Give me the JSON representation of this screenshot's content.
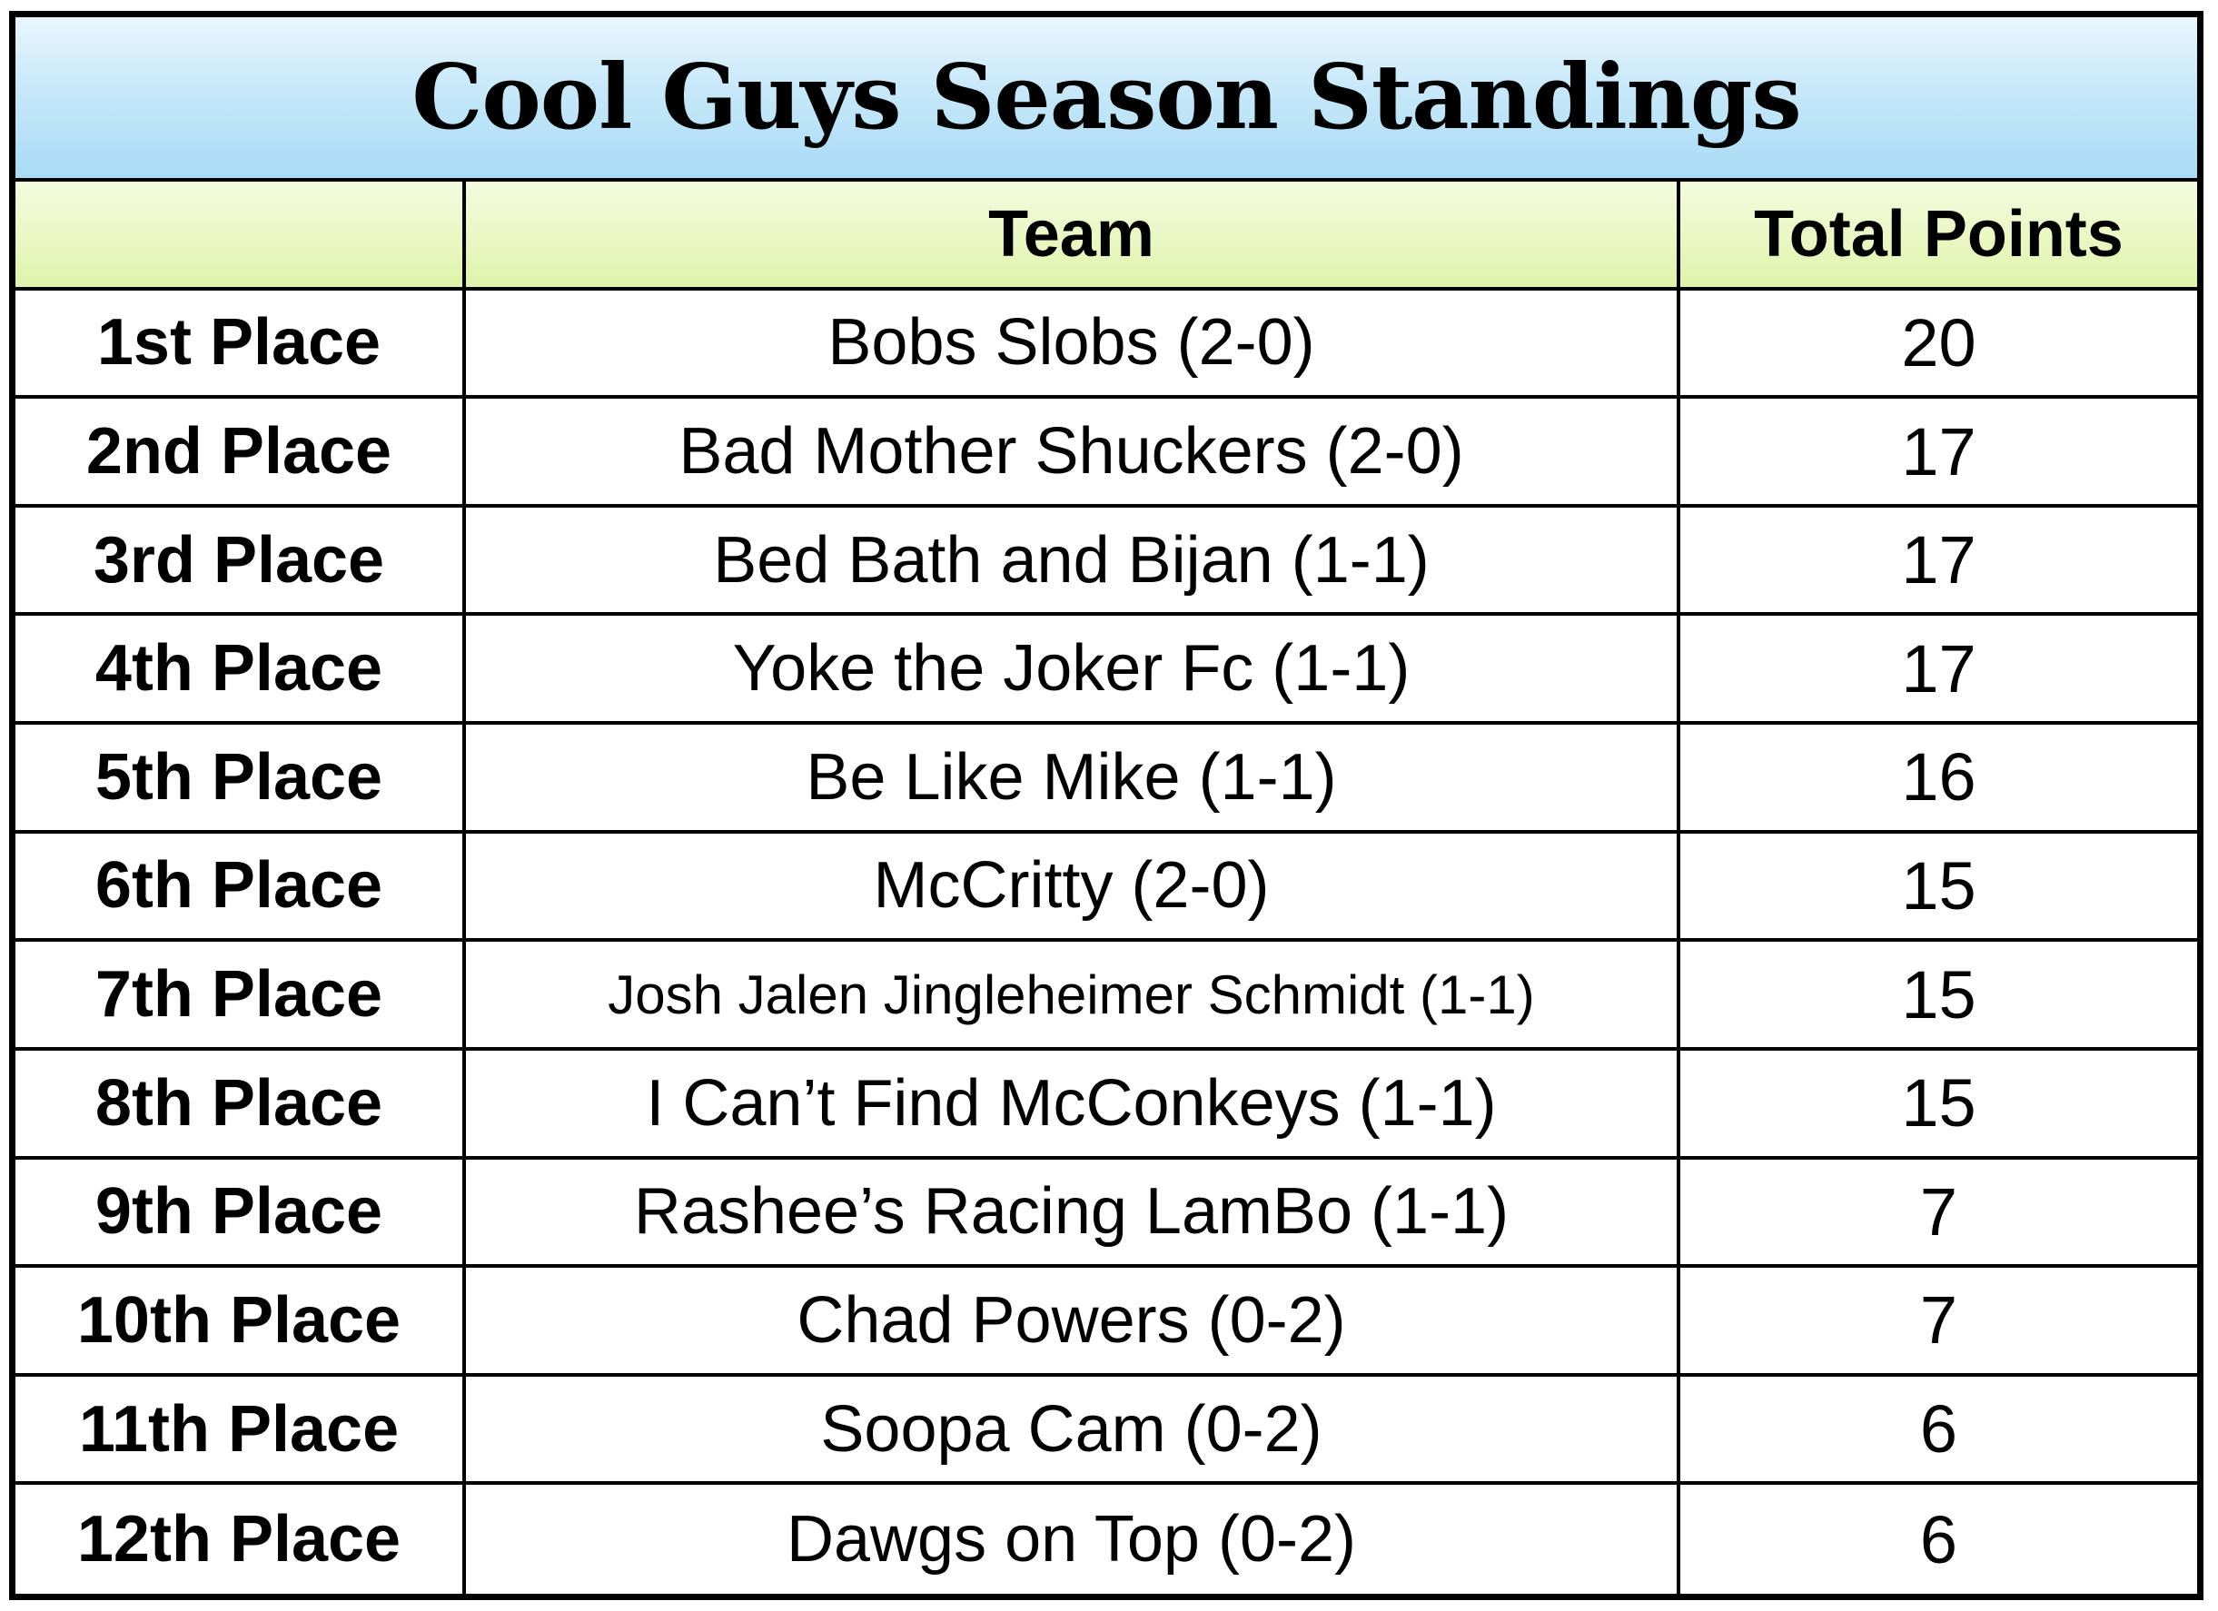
{
  "title": "Cool Guys Season Standings",
  "headers": {
    "place": "",
    "team": "Team",
    "points": "Total Points"
  },
  "rows": [
    {
      "place": "1st Place",
      "team": "Bobs Slobs (2-0)",
      "points": "20"
    },
    {
      "place": "2nd Place",
      "team": "Bad Mother Shuckers (2-0)",
      "points": "17"
    },
    {
      "place": "3rd Place",
      "team": "Bed Bath and Bijan (1-1)",
      "points": "17"
    },
    {
      "place": "4th Place",
      "team": "Yoke the Joker Fc (1-1)",
      "points": "17"
    },
    {
      "place": "5th Place",
      "team": "Be Like Mike (1-1)",
      "points": "16"
    },
    {
      "place": "6th Place",
      "team": "McCritty (2-0)",
      "points": "15"
    },
    {
      "place": "7th Place",
      "team": "Josh Jalen Jingleheimer Schmidt (1-1)",
      "points": "15"
    },
    {
      "place": "8th Place",
      "team": "I Can’t Find McConkeys (1-1)",
      "points": "15"
    },
    {
      "place": "9th Place",
      "team": "Rashee’s Racing LamBo (1-1)",
      "points": "7"
    },
    {
      "place": "10th Place",
      "team": "Chad Powers (0-2)",
      "points": "7"
    },
    {
      "place": "11th Place",
      "team": "Soopa Cam (0-2)",
      "points": "6"
    },
    {
      "place": "12th Place",
      "team": "Dawgs on Top (0-2)",
      "points": "6"
    }
  ]
}
